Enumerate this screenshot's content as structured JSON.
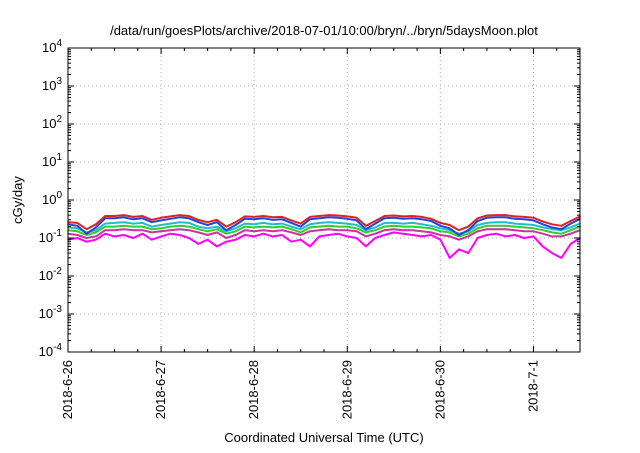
{
  "chart_data": {
    "type": "line",
    "title": "/data/run/goesPlots/archive/2018-07-01/10:00/bryn/../bryn/5daysMoon.plot",
    "xlabel": "Coordinated Universal Time (UTC)",
    "ylabel": "cGy/day",
    "yscale": "log",
    "ylim": [
      0.0001,
      10000
    ],
    "xlim": [
      0,
      5.5
    ],
    "grid": true,
    "legend": "none",
    "y_ticks": [
      {
        "value": 0.0001,
        "base": "10",
        "exp": "-4"
      },
      {
        "value": 0.001,
        "base": "10",
        "exp": "-3"
      },
      {
        "value": 0.01,
        "base": "10",
        "exp": "-2"
      },
      {
        "value": 0.1,
        "base": "10",
        "exp": "-1"
      },
      {
        "value": 1,
        "base": "10",
        "exp": "0"
      },
      {
        "value": 10,
        "base": "10",
        "exp": "1"
      },
      {
        "value": 100,
        "base": "10",
        "exp": "2"
      },
      {
        "value": 1000,
        "base": "10",
        "exp": "3"
      },
      {
        "value": 10000,
        "base": "10",
        "exp": "4"
      }
    ],
    "x_ticks": [
      {
        "value": 0,
        "label": "2018-6-26"
      },
      {
        "value": 1,
        "label": "2018-6-27"
      },
      {
        "value": 2,
        "label": "2018-6-28"
      },
      {
        "value": 3,
        "label": "2018-6-29"
      },
      {
        "value": 4,
        "label": "2018-6-30"
      },
      {
        "value": 5,
        "label": "2018-7-1"
      }
    ],
    "x": [
      0.0,
      0.1,
      0.2,
      0.3,
      0.4,
      0.5,
      0.6,
      0.7,
      0.8,
      0.9,
      1.0,
      1.1,
      1.2,
      1.3,
      1.4,
      1.5,
      1.6,
      1.7,
      1.8,
      1.9,
      2.0,
      2.1,
      2.2,
      2.3,
      2.4,
      2.5,
      2.6,
      2.7,
      2.8,
      2.9,
      3.0,
      3.1,
      3.2,
      3.3,
      3.4,
      3.5,
      3.6,
      3.7,
      3.8,
      3.9,
      4.0,
      4.1,
      4.2,
      4.3,
      4.4,
      4.5,
      4.6,
      4.7,
      4.8,
      4.9,
      5.0,
      5.1,
      5.2,
      5.3,
      5.4,
      5.5
    ],
    "series": [
      {
        "color": "#dd2222",
        "values": [
          0.26,
          0.25,
          0.17,
          0.23,
          0.38,
          0.38,
          0.4,
          0.36,
          0.38,
          0.3,
          0.34,
          0.37,
          0.4,
          0.38,
          0.3,
          0.26,
          0.3,
          0.2,
          0.26,
          0.37,
          0.36,
          0.38,
          0.35,
          0.36,
          0.29,
          0.24,
          0.36,
          0.38,
          0.4,
          0.39,
          0.37,
          0.34,
          0.21,
          0.28,
          0.38,
          0.39,
          0.37,
          0.38,
          0.36,
          0.32,
          0.25,
          0.22,
          0.16,
          0.2,
          0.33,
          0.39,
          0.4,
          0.4,
          0.37,
          0.36,
          0.34,
          0.27,
          0.23,
          0.21,
          0.28,
          0.37
        ]
      },
      {
        "color": "#2244dd",
        "values": [
          0.23,
          0.21,
          0.13,
          0.19,
          0.33,
          0.33,
          0.35,
          0.31,
          0.33,
          0.26,
          0.29,
          0.32,
          0.35,
          0.33,
          0.26,
          0.22,
          0.26,
          0.16,
          0.22,
          0.32,
          0.31,
          0.33,
          0.3,
          0.31,
          0.25,
          0.2,
          0.31,
          0.33,
          0.35,
          0.34,
          0.32,
          0.29,
          0.17,
          0.24,
          0.33,
          0.34,
          0.32,
          0.33,
          0.31,
          0.28,
          0.21,
          0.18,
          0.12,
          0.16,
          0.28,
          0.34,
          0.35,
          0.35,
          0.32,
          0.31,
          0.29,
          0.23,
          0.19,
          0.17,
          0.24,
          0.32
        ]
      },
      {
        "color": "#22bbcc",
        "values": [
          0.19,
          0.18,
          0.14,
          0.16,
          0.24,
          0.25,
          0.26,
          0.24,
          0.25,
          0.2,
          0.22,
          0.24,
          0.26,
          0.25,
          0.2,
          0.18,
          0.2,
          0.15,
          0.18,
          0.24,
          0.23,
          0.25,
          0.23,
          0.24,
          0.2,
          0.17,
          0.23,
          0.25,
          0.26,
          0.25,
          0.24,
          0.22,
          0.16,
          0.19,
          0.25,
          0.25,
          0.24,
          0.25,
          0.23,
          0.21,
          0.18,
          0.16,
          0.13,
          0.15,
          0.22,
          0.25,
          0.26,
          0.26,
          0.24,
          0.23,
          0.22,
          0.19,
          0.17,
          0.16,
          0.19,
          0.24
        ]
      },
      {
        "color": "#33cc33",
        "values": [
          0.16,
          0.15,
          0.12,
          0.14,
          0.2,
          0.2,
          0.21,
          0.2,
          0.2,
          0.17,
          0.18,
          0.2,
          0.21,
          0.2,
          0.17,
          0.15,
          0.17,
          0.13,
          0.15,
          0.2,
          0.19,
          0.2,
          0.19,
          0.2,
          0.17,
          0.14,
          0.19,
          0.2,
          0.21,
          0.2,
          0.2,
          0.18,
          0.14,
          0.16,
          0.2,
          0.21,
          0.2,
          0.2,
          0.19,
          0.18,
          0.15,
          0.14,
          0.11,
          0.13,
          0.18,
          0.21,
          0.21,
          0.21,
          0.2,
          0.19,
          0.18,
          0.16,
          0.14,
          0.13,
          0.16,
          0.2
        ]
      },
      {
        "color": "#cc3399",
        "values": [
          0.13,
          0.12,
          0.1,
          0.11,
          0.16,
          0.16,
          0.17,
          0.16,
          0.16,
          0.14,
          0.15,
          0.16,
          0.17,
          0.16,
          0.14,
          0.12,
          0.14,
          0.1,
          0.12,
          0.16,
          0.15,
          0.16,
          0.15,
          0.16,
          0.14,
          0.12,
          0.15,
          0.16,
          0.17,
          0.16,
          0.16,
          0.15,
          0.11,
          0.13,
          0.16,
          0.17,
          0.16,
          0.16,
          0.15,
          0.14,
          0.12,
          0.11,
          0.09,
          0.11,
          0.15,
          0.17,
          0.17,
          0.17,
          0.16,
          0.15,
          0.15,
          0.13,
          0.11,
          0.11,
          0.13,
          0.16
        ]
      },
      {
        "color": "#ff00ff",
        "values": [
          0.09,
          0.1,
          0.08,
          0.09,
          0.13,
          0.11,
          0.12,
          0.1,
          0.13,
          0.09,
          0.11,
          0.13,
          0.12,
          0.1,
          0.07,
          0.09,
          0.06,
          0.08,
          0.09,
          0.12,
          0.11,
          0.13,
          0.11,
          0.12,
          0.08,
          0.09,
          0.06,
          0.11,
          0.12,
          0.13,
          0.11,
          0.1,
          0.06,
          0.1,
          0.12,
          0.14,
          0.13,
          0.12,
          0.11,
          0.12,
          0.09,
          0.03,
          0.05,
          0.04,
          0.1,
          0.12,
          0.13,
          0.11,
          0.12,
          0.1,
          0.11,
          0.06,
          0.04,
          0.03,
          0.07,
          0.1
        ]
      }
    ]
  }
}
